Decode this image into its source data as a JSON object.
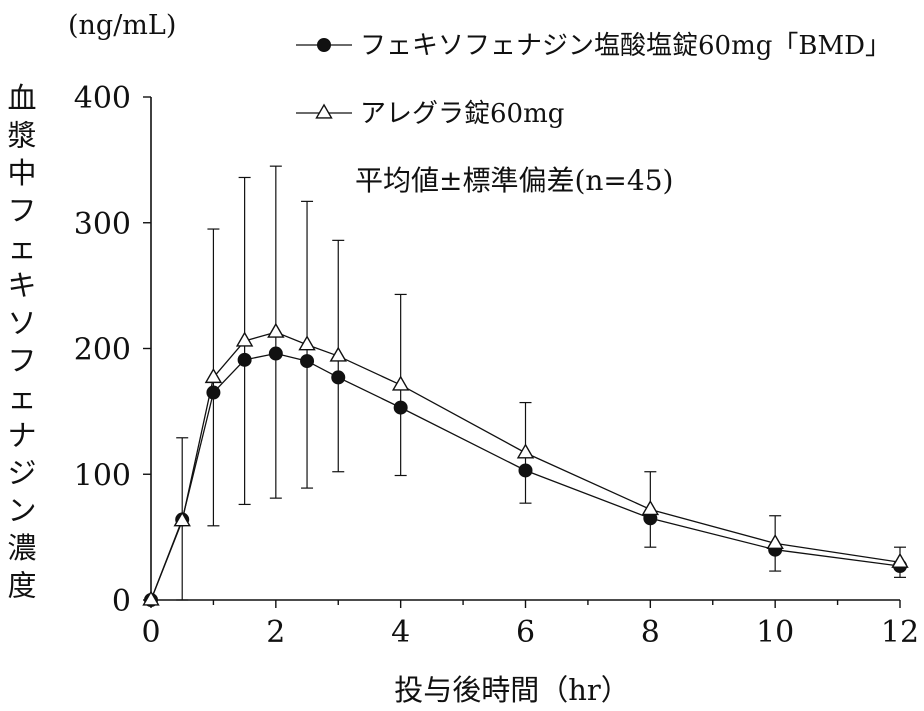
{
  "chart_data": {
    "type": "line",
    "title": "",
    "unit_label": "(ng/mL)",
    "ylabel": "血漿中フェキソフェナジン濃度",
    "xlabel": "投与後時間（hr）",
    "annotation": "平均値±標準偏差(n=45)",
    "xlim": [
      0,
      12
    ],
    "ylim": [
      0,
      400
    ],
    "x_ticks": [
      "0",
      "2",
      "4",
      "6",
      "8",
      "10",
      "12"
    ],
    "y_ticks": [
      "0",
      "100",
      "200",
      "300",
      "400"
    ],
    "grid": false,
    "legend_position": "top-right",
    "x": [
      0,
      0.5,
      1,
      1.5,
      2,
      2.5,
      3,
      4,
      6,
      8,
      10,
      12
    ],
    "series": [
      {
        "name": "フェキソフェナジン塩酸塩錠60mg「BMD」",
        "marker": "filled-circle",
        "values": [
          0,
          64,
          165,
          191,
          196,
          190,
          177,
          153,
          103,
          65,
          40,
          27
        ],
        "error": [
          0,
          0,
          0,
          0,
          0,
          0,
          0,
          0,
          0,
          0,
          0,
          0
        ]
      },
      {
        "name": "アレグラ錠60mg",
        "marker": "open-triangle",
        "values": [
          0,
          63,
          177,
          206,
          213,
          203,
          194,
          171,
          117,
          72,
          45,
          30
        ],
        "error": [
          0,
          66,
          118,
          130,
          132,
          114,
          92,
          72,
          40,
          30,
          22,
          12
        ]
      }
    ],
    "colors": {
      "line": "#111111",
      "marker_fill_circle": "#111111",
      "marker_fill_triangle": "#ffffff"
    }
  }
}
